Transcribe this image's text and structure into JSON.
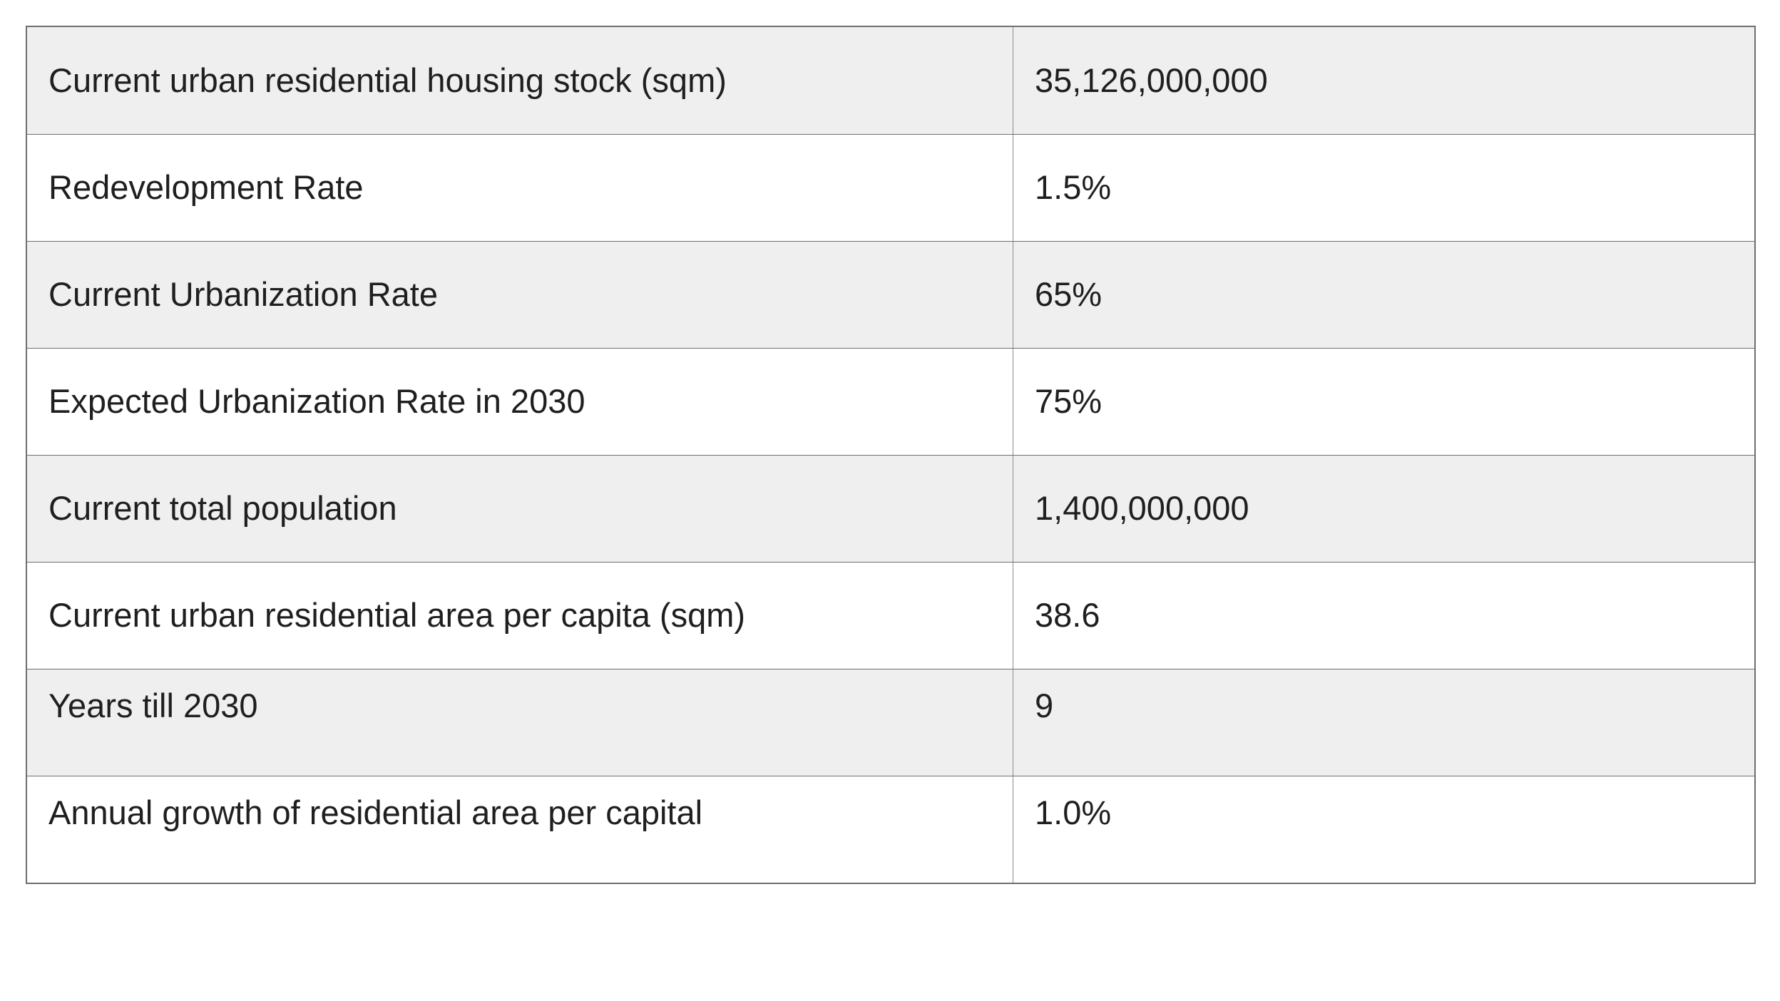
{
  "table": {
    "rows": [
      {
        "label": "Current urban residential housing stock (sqm)",
        "value": "35,126,000,000"
      },
      {
        "label": "Redevelopment Rate",
        "value": "1.5%"
      },
      {
        "label": "Current Urbanization Rate",
        "value": "65%"
      },
      {
        "label": "Expected Urbanization Rate in 2030",
        "value": "75%"
      },
      {
        "label": "Current total population",
        "value": "1,400,000,000"
      },
      {
        "label": "Current urban residential area per capita (sqm)",
        "value": "38.6"
      },
      {
        "label": "Years till 2030",
        "value": "9"
      },
      {
        "label": "Annual growth of residential area per capital",
        "value": "1.0%"
      }
    ]
  },
  "colors": {
    "shaded_row": "#efefef",
    "plain_row": "#ffffff",
    "border": "#6e6e6e",
    "text": "#1f1f1f"
  }
}
